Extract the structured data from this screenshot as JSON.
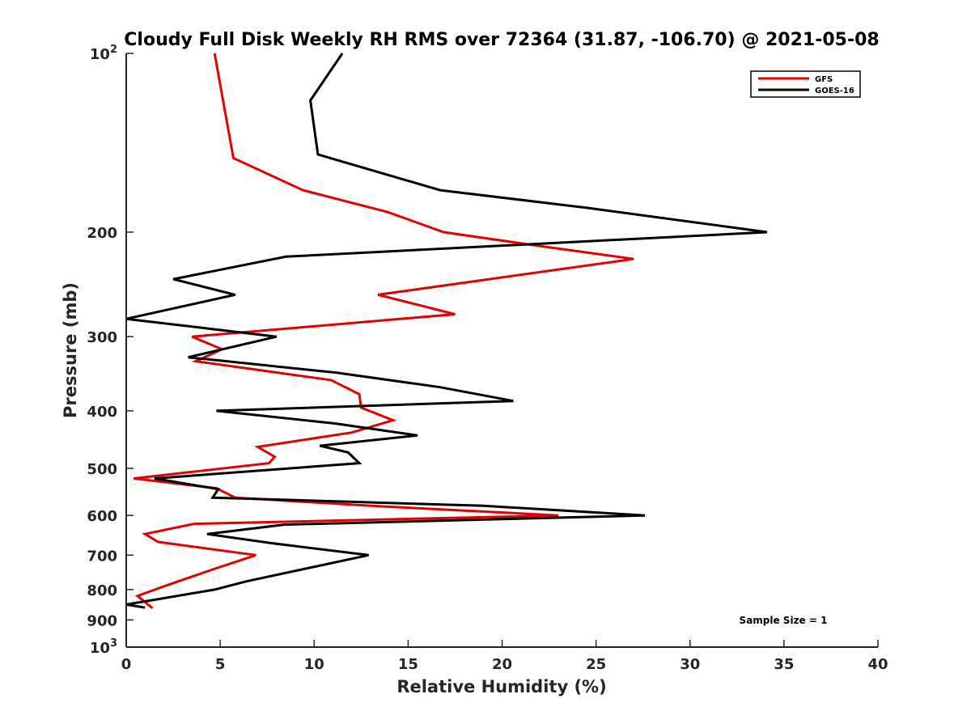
{
  "chart_data": {
    "type": "line",
    "title": "Cloudy Full Disk Weekly RH RMS over 72364 (31.87, -106.70) @ 2021-05-08",
    "xlabel": "Relative Humidity (%)",
    "ylabel": "Pressure (mb)",
    "xlim": [
      0,
      40
    ],
    "ylim": [
      100,
      1000
    ],
    "y_scale": "log",
    "y_reversed": true,
    "grid": false,
    "legend_position": "top-right",
    "x_ticks": [
      "0",
      "5",
      "10",
      "15",
      "20",
      "25",
      "30",
      "35",
      "40"
    ],
    "y_ticks": [
      {
        "value": 100,
        "base": "10",
        "exp": "2"
      },
      {
        "value": 200,
        "label": "200"
      },
      {
        "value": 300,
        "label": "300"
      },
      {
        "value": 400,
        "label": "400"
      },
      {
        "value": 500,
        "label": "500"
      },
      {
        "value": 600,
        "label": "600"
      },
      {
        "value": 700,
        "label": "700"
      },
      {
        "value": 800,
        "label": "800"
      },
      {
        "value": 900,
        "label": "900"
      },
      {
        "value": 1000,
        "base": "10",
        "exp": "3"
      }
    ],
    "series": [
      {
        "name": "GFS",
        "color": "#e30000",
        "points": [
          [
            4.7,
            100
          ],
          [
            5.7,
            150
          ],
          [
            9.4,
            170
          ],
          [
            13.9,
            185
          ],
          [
            16.9,
            200
          ],
          [
            21.5,
            210
          ],
          [
            27.0,
            222
          ],
          [
            13.4,
            255
          ],
          [
            17.5,
            275
          ],
          [
            3.5,
            300
          ],
          [
            5.1,
            315
          ],
          [
            3.7,
            330
          ],
          [
            10.9,
            355
          ],
          [
            12.4,
            375
          ],
          [
            12.5,
            395
          ],
          [
            14.2,
            415
          ],
          [
            12.0,
            435
          ],
          [
            7.0,
            460
          ],
          [
            7.9,
            478
          ],
          [
            7.6,
            490
          ],
          [
            0.4,
            520
          ],
          [
            4.8,
            540
          ],
          [
            5.8,
            560
          ],
          [
            13.0,
            578
          ],
          [
            23.0,
            600
          ],
          [
            3.6,
            620
          ],
          [
            1.0,
            645
          ],
          [
            1.7,
            665
          ],
          [
            6.9,
            700
          ],
          [
            4.6,
            740
          ],
          [
            2.0,
            790
          ],
          [
            0.6,
            820
          ],
          [
            1.4,
            860
          ]
        ]
      },
      {
        "name": "GOES-16",
        "color": "#000000",
        "points": [
          [
            11.5,
            100
          ],
          [
            9.8,
            120
          ],
          [
            10.2,
            148
          ],
          [
            16.7,
            170
          ],
          [
            24.5,
            182
          ],
          [
            34.1,
            200
          ],
          [
            8.5,
            220
          ],
          [
            2.5,
            240
          ],
          [
            5.8,
            255
          ],
          [
            0.0,
            280
          ],
          [
            8.0,
            300
          ],
          [
            3.3,
            325
          ],
          [
            11.2,
            345
          ],
          [
            16.7,
            365
          ],
          [
            20.6,
            385
          ],
          [
            4.8,
            400
          ],
          [
            11.1,
            420
          ],
          [
            15.5,
            440
          ],
          [
            10.3,
            458
          ],
          [
            11.8,
            470
          ],
          [
            12.4,
            490
          ],
          [
            1.5,
            520
          ],
          [
            4.9,
            542
          ],
          [
            4.6,
            560
          ],
          [
            19.0,
            578
          ],
          [
            27.6,
            600
          ],
          [
            8.4,
            622
          ],
          [
            4.3,
            645
          ],
          [
            7.7,
            668
          ],
          [
            12.9,
            700
          ],
          [
            6.4,
            775
          ],
          [
            4.7,
            800
          ],
          [
            0.0,
            848
          ],
          [
            1.0,
            858
          ]
        ]
      }
    ],
    "annotations": [
      {
        "text": "Sample Size = 1",
        "position": "bottom-right"
      }
    ]
  }
}
